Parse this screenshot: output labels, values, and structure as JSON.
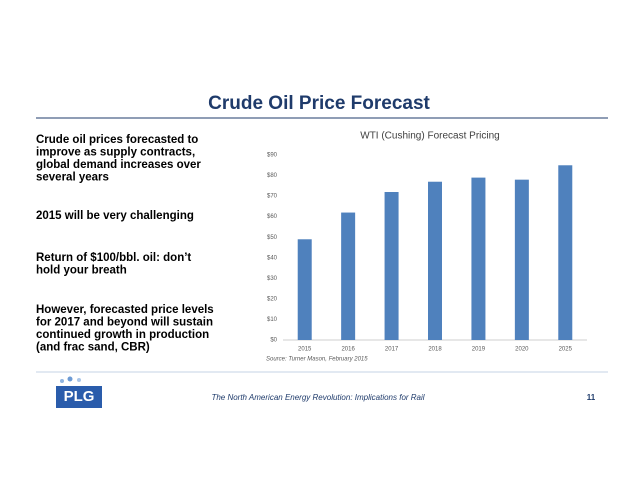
{
  "slide_title": "Crude Oil Price Forecast",
  "bullets": [
    {
      "lines": [
        "Crude oil prices forecasted to",
        "improve as supply contracts,",
        "global demand increases over",
        "several years"
      ]
    },
    {
      "lines": [
        "2015 will be very challenging"
      ]
    },
    {
      "lines": [
        "Return of $100/bbl. oil:  don’t",
        "hold your breath"
      ]
    },
    {
      "lines": [
        "However, forecasted price levels",
        "for 2017 and beyond will sustain",
        "continued growth in production",
        "(and frac sand, CBR)"
      ]
    }
  ],
  "chart_data": {
    "type": "bar",
    "title": "WTI (Cushing) Forecast Pricing",
    "categories": [
      "2015",
      "2016",
      "2017",
      "2018",
      "2019",
      "2020",
      "2025"
    ],
    "values": [
      49,
      62,
      72,
      77,
      79,
      78,
      85
    ],
    "color": "#4f81bd",
    "ylim": [
      0,
      90
    ],
    "yticks": [
      {
        "value": 0,
        "label": "$0"
      },
      {
        "value": 10,
        "label": "$10"
      },
      {
        "value": 20,
        "label": "$20"
      },
      {
        "value": 30,
        "label": "$30"
      },
      {
        "value": 40,
        "label": "$40"
      },
      {
        "value": 50,
        "label": "$50"
      },
      {
        "value": 60,
        "label": "$60"
      },
      {
        "value": 70,
        "label": "$70"
      },
      {
        "value": 80,
        "label": "$80"
      },
      {
        "value": 90,
        "label": "$90"
      }
    ],
    "grid": false,
    "source": "Source: Turner Mason, February 2015"
  },
  "footer": {
    "logo": "PLG",
    "text": "The North American Energy Revolution:  Implications for Rail",
    "page_number": "11"
  }
}
